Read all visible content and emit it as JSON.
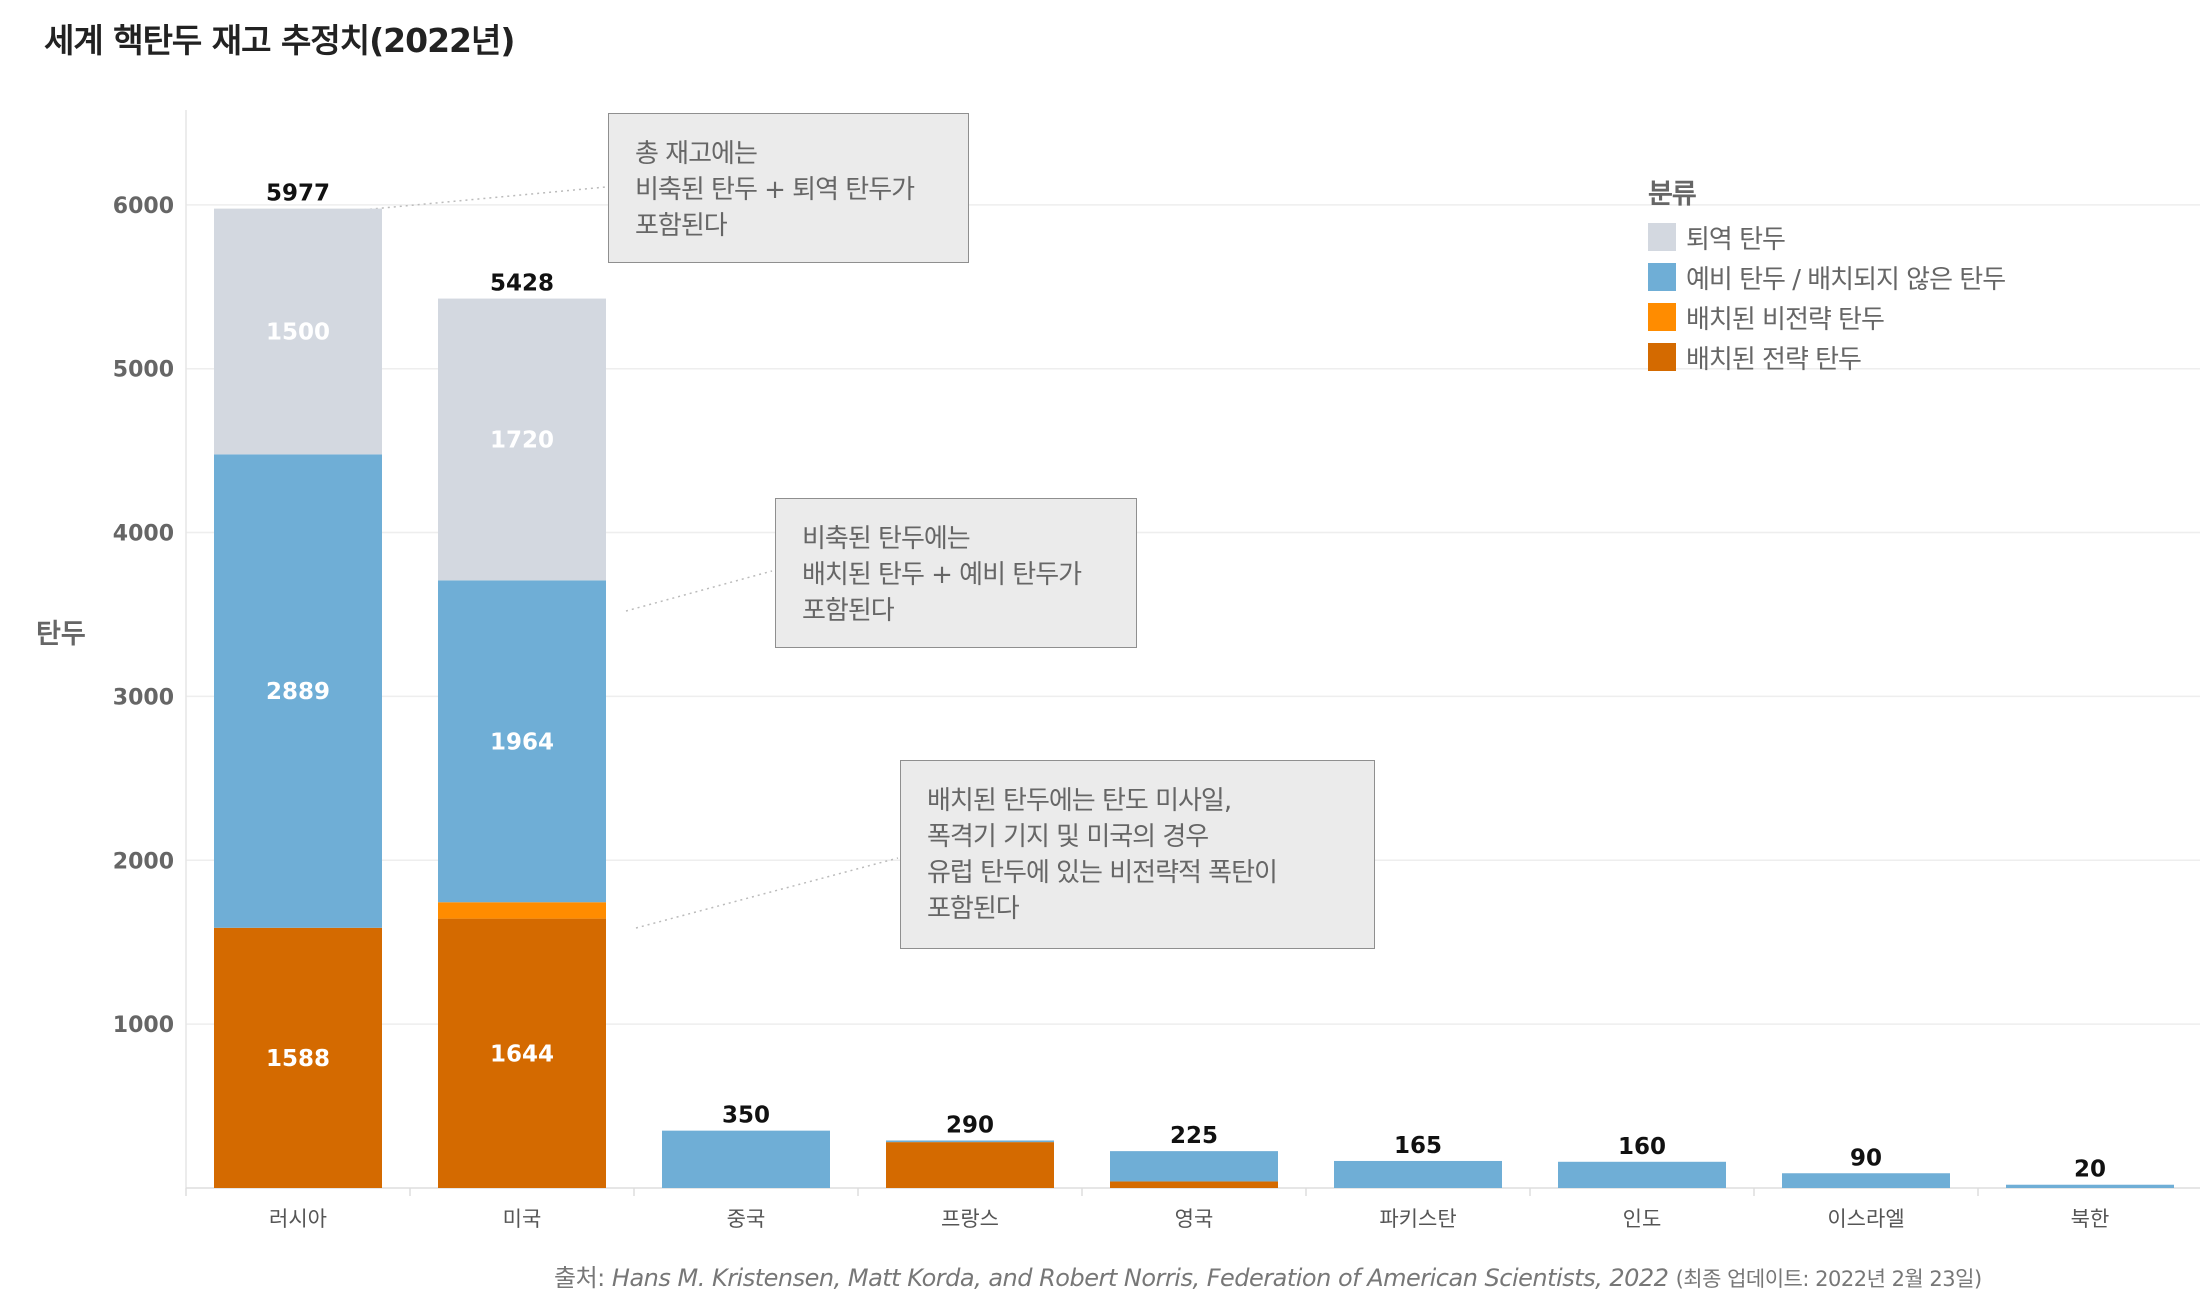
{
  "title": "세계 핵탄두 재고 추정치(2022년)",
  "chart_data": {
    "type": "bar",
    "stacked": true,
    "categories": [
      "러시아",
      "미국",
      "중국",
      "프랑스",
      "영국",
      "파키스탄",
      "인도",
      "이스라엘",
      "북한"
    ],
    "series": [
      {
        "name": "배치된 전략 탄두",
        "color": "#D46A00",
        "values": [
          1588,
          1644,
          0,
          280,
          40,
          0,
          0,
          0,
          0
        ]
      },
      {
        "name": "배치된 비전략 탄두",
        "color": "#FF8C00",
        "values": [
          0,
          100,
          0,
          0,
          0,
          0,
          0,
          0,
          0
        ]
      },
      {
        "name": "예비 탄두 / 배치되지 않은 탄두",
        "color": "#6FAED6",
        "values": [
          2889,
          1964,
          350,
          10,
          185,
          165,
          160,
          90,
          20
        ]
      },
      {
        "name": "퇴역 탄두",
        "color": "#D3D8E0",
        "values": [
          1500,
          1720,
          0,
          0,
          0,
          0,
          0,
          0,
          0
        ]
      }
    ],
    "segment_labels": [
      {
        "category": "러시아",
        "series": "배치된 전략 탄두",
        "text": "1588"
      },
      {
        "category": "러시아",
        "series": "예비 탄두 / 배치되지 않은 탄두",
        "text": "2889"
      },
      {
        "category": "러시아",
        "series": "퇴역 탄두",
        "text": "1500"
      },
      {
        "category": "미국",
        "series": "배치된 전략 탄두",
        "text": "1644"
      },
      {
        "category": "미국",
        "series": "예비 탄두 / 배치되지 않은 탄두",
        "text": "1964"
      },
      {
        "category": "미국",
        "series": "퇴역 탄두",
        "text": "1720"
      }
    ],
    "totals": [
      5977,
      5428,
      350,
      290,
      225,
      165,
      160,
      90,
      20
    ],
    "ylabel": "탄두",
    "xlabel": "",
    "yticks": [
      1000,
      2000,
      3000,
      4000,
      5000,
      6000
    ],
    "ylim": [
      0,
      6500
    ],
    "grid": true,
    "legend_title": "분류",
    "legend_position": "top-right"
  },
  "legend": {
    "title": "분류",
    "items": [
      {
        "label": "퇴역 탄두",
        "color": "#D3D8E0"
      },
      {
        "label": "예비 탄두 / 배치되지 않은 탄두",
        "color": "#6FAED6"
      },
      {
        "label": "배치된 비전략 탄두",
        "color": "#FF8C00"
      },
      {
        "label": "배치된 전략 탄두",
        "color": "#D46A00"
      }
    ]
  },
  "annotations": [
    {
      "lines": [
        "총 재고에는",
        "비축된 탄두 + 퇴역 탄두가",
        "포함된다"
      ]
    },
    {
      "lines": [
        "비축된 탄두에는",
        "배치된 탄두 + 예비 탄두가",
        "포함된다"
      ]
    },
    {
      "lines": [
        "배치된 탄두에는 탄도 미사일,",
        "폭격기 기지 및 미국의 경우",
        "유럽 탄두에 있는 비전략적 폭탄이",
        "포함된다"
      ]
    }
  ],
  "source": {
    "prefix": "출처:",
    "citation": "Hans M. Kristensen, Matt Korda, and Robert Norris, Federation of American Scientists, 2022",
    "updated": "(최종 업데이트: 2022년 2월 23일)"
  }
}
